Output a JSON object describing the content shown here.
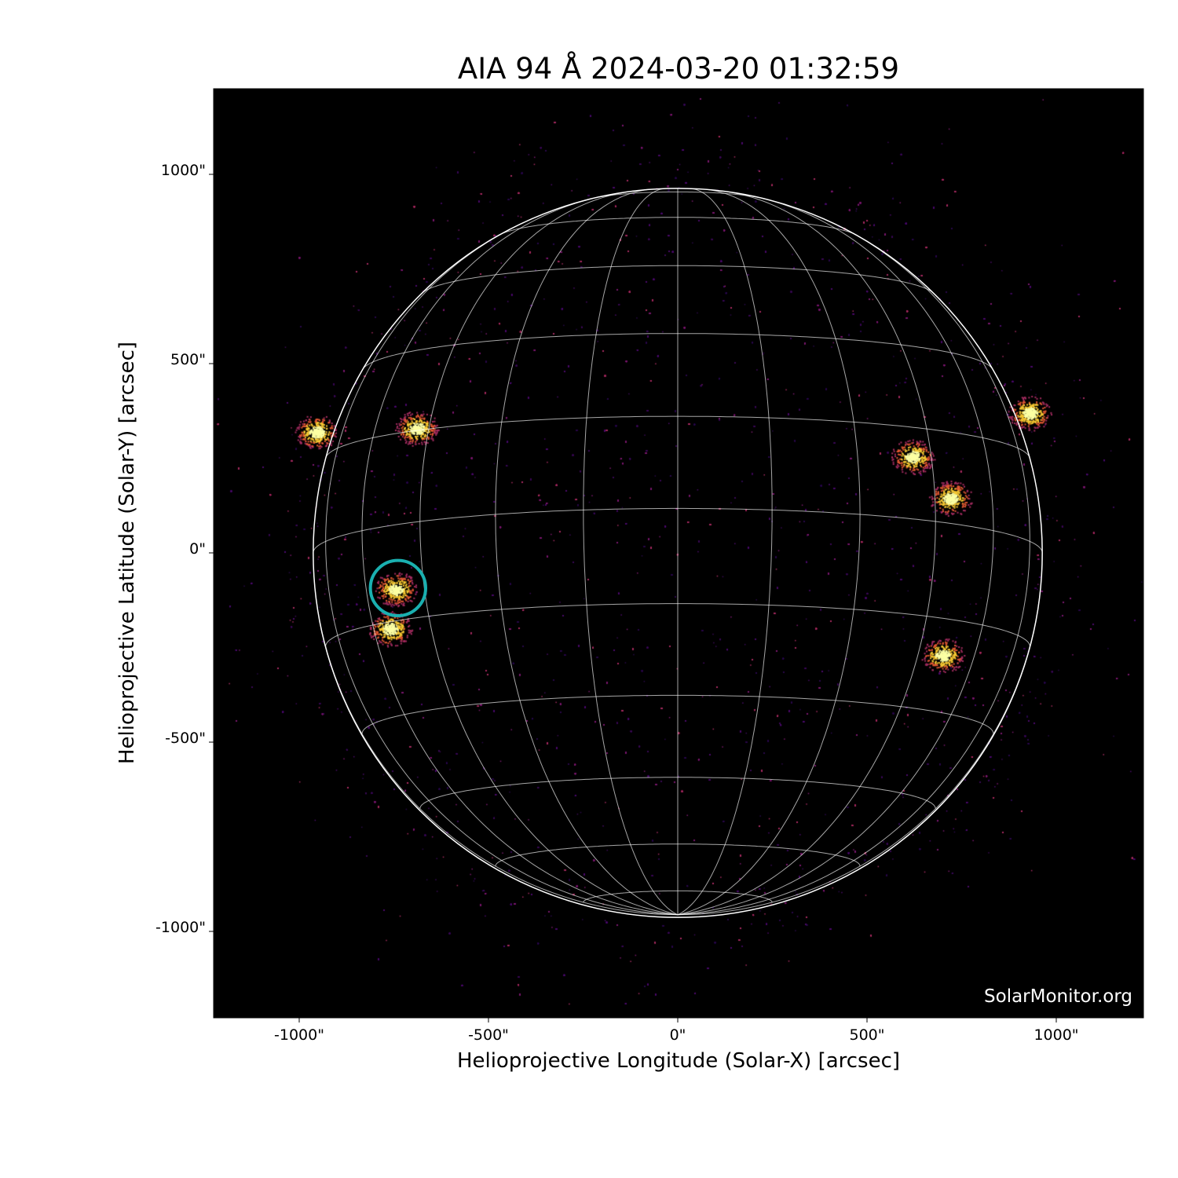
{
  "chart_data": {
    "type": "image",
    "title": "AIA 94 Å 2024-03-20 01:32:59",
    "xlabel": "Helioprojective Longitude (Solar-X) [arcsec]",
    "ylabel": "Helioprojective Latitude (Solar-Y) [arcsec]",
    "xlim": [
      -1228,
      1228
    ],
    "ylim": [
      -1228,
      1228
    ],
    "xticks": [
      {
        "value": -1000,
        "label": "-1000\""
      },
      {
        "value": -500,
        "label": "-500\""
      },
      {
        "value": 0,
        "label": "0\""
      },
      {
        "value": 500,
        "label": "500\""
      },
      {
        "value": 1000,
        "label": "1000\""
      }
    ],
    "yticks": [
      {
        "value": 1000,
        "label": "1000\""
      },
      {
        "value": 500,
        "label": "500\""
      },
      {
        "value": 0,
        "label": "0\""
      },
      {
        "value": -500,
        "label": "-500\""
      },
      {
        "value": -1000,
        "label": "-1000\""
      }
    ],
    "colormap": "inferno",
    "grid": "heliographic lat/lon, 15° spacing",
    "annotation_circle": {
      "center": [
        -739,
        -93
      ],
      "radius": 73,
      "color": "#1ab0b0"
    },
    "active_regions": [
      {
        "x": -690,
        "y": 330
      },
      {
        "x": -955,
        "y": 320
      },
      {
        "x": -745,
        "y": -95
      },
      {
        "x": -760,
        "y": -200
      },
      {
        "x": 720,
        "y": 145
      },
      {
        "x": 620,
        "y": 255
      },
      {
        "x": 930,
        "y": 370
      },
      {
        "x": 700,
        "y": -270
      }
    ]
  },
  "watermark": "SolarMonitor.org"
}
